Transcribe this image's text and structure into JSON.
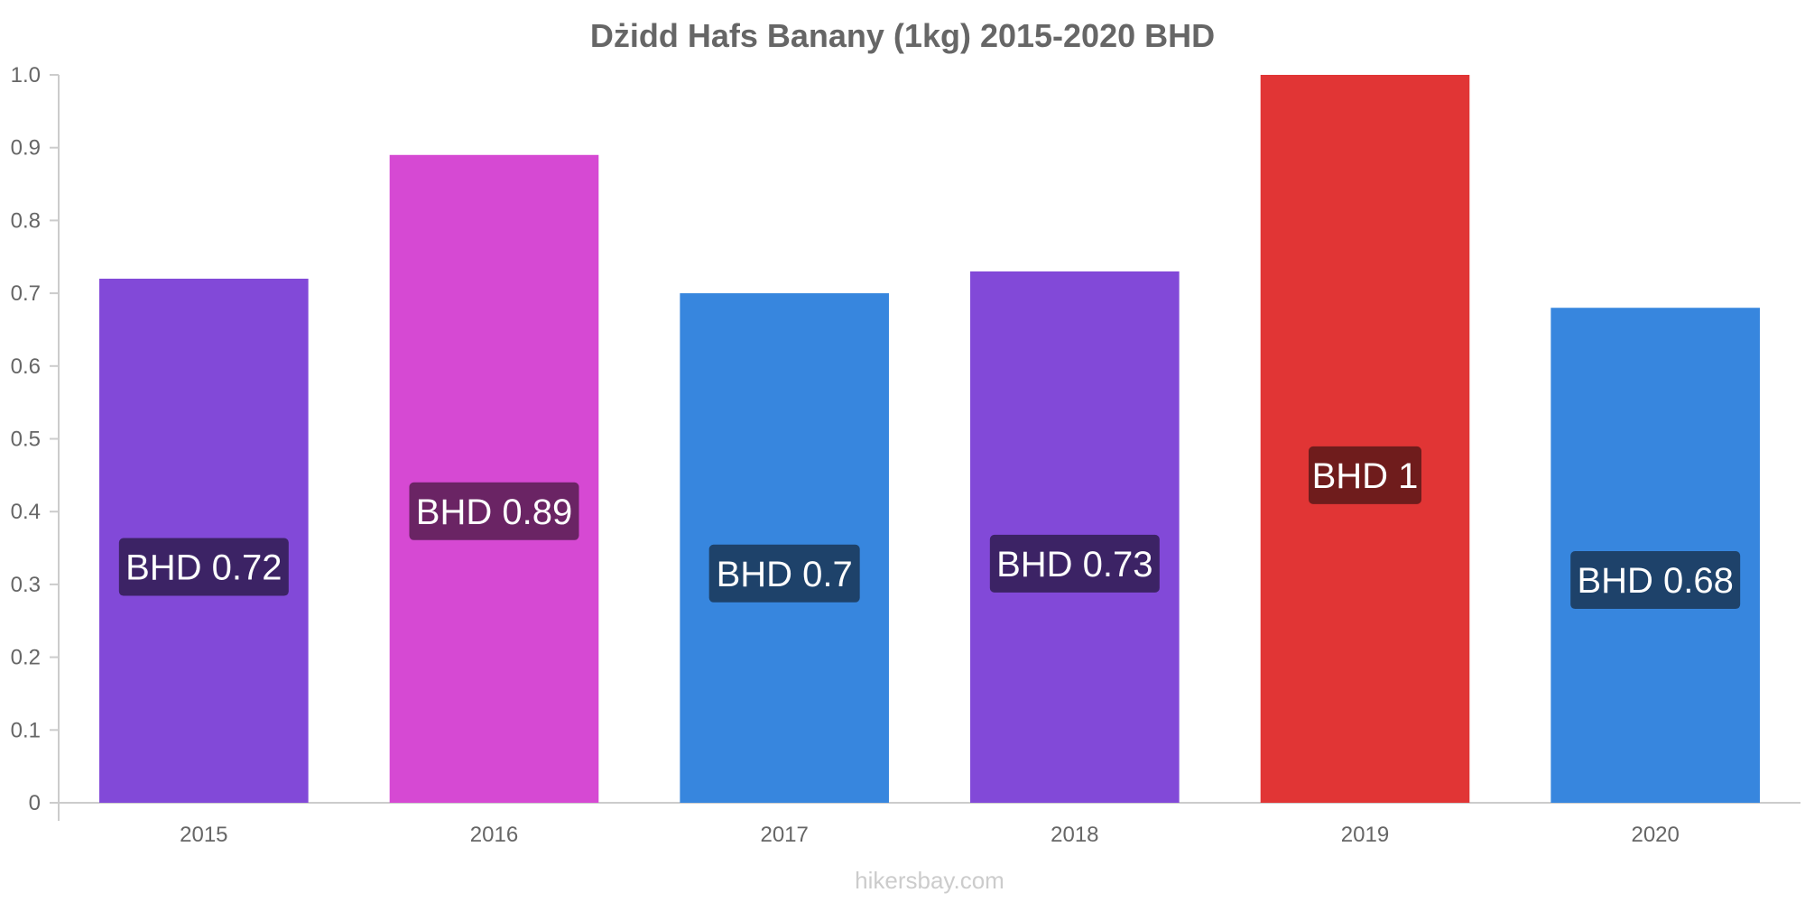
{
  "chart_data": {
    "type": "bar",
    "title": "Dżidd Hafs Banany (1kg) 2015-2020 BHD",
    "xlabel": "",
    "ylabel": "",
    "categories": [
      "2015",
      "2016",
      "2017",
      "2018",
      "2019",
      "2020"
    ],
    "values": [
      0.72,
      0.89,
      0.7,
      0.73,
      1,
      0.68
    ],
    "data_labels": [
      "BHD 0.72",
      "BHD 0.89",
      "BHD 0.7",
      "BHD 0.73",
      "BHD 1",
      "BHD 0.68"
    ],
    "bar_colors": [
      "#8249d8",
      "#d649d3",
      "#3786de",
      "#8249d8",
      "#e13535",
      "#3786de"
    ],
    "label_bg_colors": [
      "#3c2365",
      "#6a2464",
      "#1e426a",
      "#3c2365",
      "#6f1c1c",
      "#1e426a"
    ],
    "ylim": [
      0,
      1
    ],
    "yticks": [
      "0",
      "0.1",
      "0.2",
      "0.3",
      "0.4",
      "0.5",
      "0.6",
      "0.7",
      "0.8",
      "0.9",
      "1.0"
    ],
    "grid": false,
    "legend": "none"
  },
  "watermark": "hikersbay.com"
}
